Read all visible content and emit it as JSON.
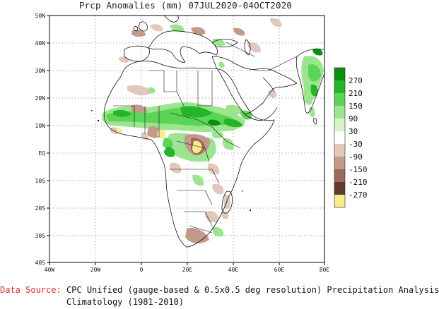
{
  "title": {
    "variable": "Prcp Anomalies (mm)",
    "start": "07JUL2020",
    "separator": "-",
    "end": "04OCT2020"
  },
  "lat_labels": [
    "50N",
    "40N",
    "30N",
    "20N",
    "10N",
    "EQ",
    "10S",
    "20S",
    "30S",
    "40S"
  ],
  "lon_labels": [
    "40W",
    "20W",
    "0",
    "20E",
    "40E",
    "60E",
    "80E"
  ],
  "legend": {
    "labels": [
      "270",
      "210",
      "150",
      "90",
      "30",
      "-30",
      "-90",
      "-150",
      "-210",
      "-270"
    ],
    "colors": [
      "#0c8f10",
      "#26b42a",
      "#5cd457",
      "#9be58f",
      "#d6f5cc",
      "#ffffff",
      "#e2c7bc",
      "#c3998a",
      "#9a6a5a",
      "#5e3b2e",
      "#f5ec8a"
    ]
  },
  "source": {
    "label": "Data Source:",
    "line1": "CPC Unified (gauge-based & 0.5x0.5 deg resolution) Precipitation Analysis",
    "line2": "Climatology (1981-2010)"
  },
  "colors": {
    "land_outline": "#111111",
    "frame": "#000000",
    "grid": "#777777",
    "source_label": "#e0282f"
  }
}
